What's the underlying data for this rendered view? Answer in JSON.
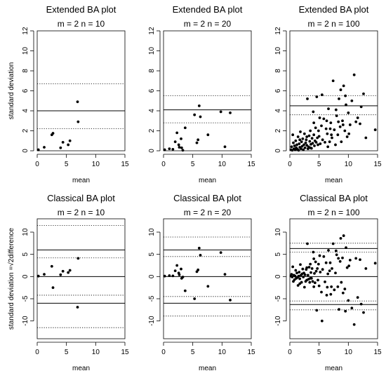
{
  "chart_data": [
    {
      "type": "scatter",
      "title": "Extended BA plot",
      "subtitle": "m = 2 n = 10",
      "xlabel": "mean",
      "ylabel": "standard deviation",
      "xlim": [
        0,
        15
      ],
      "ylim": [
        0,
        12
      ],
      "xticks": [
        0,
        5,
        10,
        15
      ],
      "yticks": [
        0,
        2,
        4,
        6,
        8,
        10,
        12
      ],
      "solid_lines": [
        4.0
      ],
      "dotted_lines": [
        2.2,
        6.7
      ],
      "points": [
        [
          0.2,
          0.1
        ],
        [
          1.2,
          0.35
        ],
        [
          2.5,
          1.6
        ],
        [
          2.7,
          1.75
        ],
        [
          4.0,
          0.3
        ],
        [
          4.4,
          0.85
        ],
        [
          5.3,
          0.6
        ],
        [
          5.6,
          1.0
        ],
        [
          7.0,
          2.9
        ],
        [
          6.9,
          4.9
        ]
      ]
    },
    {
      "type": "scatter",
      "title": "Extended BA plot",
      "subtitle": "m = 2 n = 20",
      "xlabel": "mean",
      "ylabel": "",
      "xlim": [
        0,
        15
      ],
      "ylim": [
        0,
        12
      ],
      "xticks": [
        0,
        5,
        10,
        15
      ],
      "yticks": [
        0,
        2,
        4,
        6,
        8,
        10,
        12
      ],
      "solid_lines": [
        4.1
      ],
      "dotted_lines": [
        2.8,
        5.5
      ],
      "points": [
        [
          0.2,
          0.1
        ],
        [
          1.0,
          0.2
        ],
        [
          1.6,
          0.15
        ],
        [
          2.0,
          0.9
        ],
        [
          2.3,
          1.8
        ],
        [
          2.7,
          0.35
        ],
        [
          3.1,
          0.3
        ],
        [
          3.7,
          2.3
        ],
        [
          5.3,
          3.6
        ],
        [
          5.7,
          0.8
        ],
        [
          5.9,
          1.1
        ],
        [
          6.1,
          4.5
        ],
        [
          6.3,
          3.4
        ],
        [
          7.6,
          1.6
        ],
        [
          9.8,
          3.9
        ],
        [
          10.5,
          0.4
        ],
        [
          11.4,
          3.8
        ],
        [
          2.6,
          0.6
        ],
        [
          3.0,
          1.2
        ],
        [
          3.3,
          0.05
        ]
      ]
    },
    {
      "type": "scatter",
      "title": "Extended BA plot",
      "subtitle": "m = 2 n = 100",
      "xlabel": "mean",
      "ylabel": "",
      "xlim": [
        0,
        15
      ],
      "ylim": [
        0,
        12
      ],
      "xticks": [
        0,
        5,
        10,
        15
      ],
      "yticks": [
        0,
        2,
        4,
        6,
        8,
        10,
        12
      ],
      "solid_lines": [
        4.5
      ],
      "dotted_lines": [
        3.6,
        5.5
      ],
      "points": [
        [
          0.2,
          0.1
        ],
        [
          0.3,
          0.4
        ],
        [
          0.4,
          0.05
        ],
        [
          0.5,
          1.6
        ],
        [
          0.6,
          0.8
        ],
        [
          0.7,
          0.2
        ],
        [
          0.8,
          0.5
        ],
        [
          0.9,
          0.1
        ],
        [
          1.0,
          1.0
        ],
        [
          1.1,
          0.3
        ],
        [
          1.2,
          0.6
        ],
        [
          1.3,
          0.15
        ],
        [
          1.4,
          1.4
        ],
        [
          1.5,
          0.05
        ],
        [
          1.6,
          0.7
        ],
        [
          1.7,
          0.35
        ],
        [
          1.8,
          1.9
        ],
        [
          1.9,
          0.2
        ],
        [
          2.0,
          0.9
        ],
        [
          2.1,
          0.45
        ],
        [
          2.2,
          1.2
        ],
        [
          2.3,
          0.1
        ],
        [
          2.4,
          0.6
        ],
        [
          2.5,
          1.7
        ],
        [
          2.6,
          0.3
        ],
        [
          2.7,
          0.8
        ],
        [
          2.8,
          1.1
        ],
        [
          2.9,
          0.55
        ],
        [
          3.0,
          5.2
        ],
        [
          3.1,
          0.2
        ],
        [
          3.2,
          0.4
        ],
        [
          3.3,
          1.5
        ],
        [
          3.4,
          0.95
        ],
        [
          3.5,
          2.0
        ],
        [
          3.6,
          0.65
        ],
        [
          3.7,
          0.25
        ],
        [
          3.8,
          1.25
        ],
        [
          3.9,
          0.75
        ],
        [
          4.0,
          3.9
        ],
        [
          4.1,
          1.6
        ],
        [
          4.2,
          0.5
        ],
        [
          4.3,
          1.0
        ],
        [
          4.4,
          2.3
        ],
        [
          4.5,
          0.85
        ],
        [
          4.6,
          5.4
        ],
        [
          4.7,
          1.3
        ],
        [
          4.8,
          0.6
        ],
        [
          4.9,
          2.0
        ],
        [
          5.0,
          1.45
        ],
        [
          5.2,
          0.7
        ],
        [
          5.4,
          2.5
        ],
        [
          5.6,
          1.1
        ],
        [
          5.8,
          3.2
        ],
        [
          6.0,
          0.85
        ],
        [
          6.2,
          2.2
        ],
        [
          6.4,
          1.7
        ],
        [
          6.6,
          4.2
        ],
        [
          6.8,
          0.9
        ],
        [
          7.0,
          2.8
        ],
        [
          7.2,
          1.3
        ],
        [
          7.4,
          7.0
        ],
        [
          7.6,
          2.1
        ],
        [
          7.8,
          0.6
        ],
        [
          8.0,
          3.5
        ],
        [
          8.2,
          1.6
        ],
        [
          8.4,
          5.2
        ],
        [
          8.6,
          2.4
        ],
        [
          8.8,
          0.9
        ],
        [
          9.0,
          3.0
        ],
        [
          9.2,
          6.5
        ],
        [
          9.4,
          2.0
        ],
        [
          9.6,
          4.6
        ],
        [
          9.8,
          1.4
        ],
        [
          10.0,
          3.8
        ],
        [
          10.3,
          2.6
        ],
        [
          10.6,
          5.0
        ],
        [
          11.0,
          7.6
        ],
        [
          11.3,
          2.9
        ],
        [
          11.6,
          3.3
        ],
        [
          12.0,
          2.7
        ],
        [
          12.6,
          5.7
        ],
        [
          13.0,
          1.3
        ],
        [
          14.6,
          2.1
        ],
        [
          6.5,
          0.4
        ],
        [
          7.1,
          1.6
        ],
        [
          8.3,
          2.9
        ],
        [
          9.1,
          2.6
        ],
        [
          10.1,
          1.7
        ],
        [
          5.5,
          5.6
        ],
        [
          4.1,
          2.8
        ],
        [
          3.5,
          0.3
        ],
        [
          2.9,
          1.4
        ],
        [
          1.7,
          1.1
        ],
        [
          6.3,
          3.0
        ],
        [
          7.9,
          4.1
        ],
        [
          8.7,
          6.1
        ],
        [
          9.5,
          5.5
        ],
        [
          12.2,
          4.4
        ],
        [
          6.9,
          2.2
        ],
        [
          5.1,
          3.3
        ]
      ]
    },
    {
      "type": "scatter",
      "title": "Classical BA plot",
      "subtitle": "m = 2 n = 10",
      "xlabel": "mean",
      "ylabel": "standard deviation =√2difference",
      "xlim": [
        0,
        15
      ],
      "ylim": [
        -14,
        13
      ],
      "xticks": [
        0,
        5,
        10,
        15
      ],
      "yticks": [
        -10,
        -5,
        0,
        5,
        10
      ],
      "solid_lines": [
        6.0,
        0.0,
        -6.0
      ],
      "dotted_lines": [
        11.5,
        4.2,
        -4.2,
        -11.5
      ],
      "points": [
        [
          0.2,
          0.1
        ],
        [
          1.2,
          0.5
        ],
        [
          2.5,
          2.3
        ],
        [
          2.7,
          -2.5
        ],
        [
          4.0,
          0.4
        ],
        [
          4.4,
          1.2
        ],
        [
          5.3,
          0.9
        ],
        [
          5.6,
          1.4
        ],
        [
          7.0,
          4.1
        ],
        [
          6.9,
          -6.9
        ]
      ]
    },
    {
      "type": "scatter",
      "title": "Classical BA plot",
      "subtitle": "m = 2 n = 20",
      "xlabel": "mean",
      "ylabel": "",
      "xlim": [
        0,
        15
      ],
      "ylim": [
        -14,
        13
      ],
      "xticks": [
        0,
        5,
        10,
        15
      ],
      "yticks": [
        -10,
        -5,
        0,
        5,
        10
      ],
      "solid_lines": [
        6.0,
        0.0,
        -6.0
      ],
      "dotted_lines": [
        8.9,
        4.5,
        -4.5,
        -8.9
      ],
      "points": [
        [
          0.2,
          0.1
        ],
        [
          1.0,
          0.2
        ],
        [
          1.6,
          0.15
        ],
        [
          2.0,
          1.3
        ],
        [
          2.3,
          2.5
        ],
        [
          2.7,
          0.4
        ],
        [
          3.1,
          -0.4
        ],
        [
          3.7,
          -3.2
        ],
        [
          5.3,
          -5.0
        ],
        [
          5.7,
          1.1
        ],
        [
          5.9,
          1.5
        ],
        [
          6.1,
          6.4
        ],
        [
          6.3,
          4.8
        ],
        [
          7.6,
          -2.2
        ],
        [
          9.8,
          5.4
        ],
        [
          10.5,
          0.5
        ],
        [
          11.4,
          -5.3
        ],
        [
          2.6,
          0.8
        ],
        [
          3.0,
          1.7
        ],
        [
          3.3,
          -0.1
        ]
      ]
    },
    {
      "type": "scatter",
      "title": "Classical BA plot",
      "subtitle": "m = 2 n = 100",
      "xlabel": "mean",
      "ylabel": "",
      "xlim": [
        0,
        15
      ],
      "ylim": [
        -14,
        13
      ],
      "xticks": [
        0,
        5,
        10,
        15
      ],
      "yticks": [
        -10,
        -5,
        0,
        5,
        10
      ],
      "solid_lines": [
        6.3,
        0.0,
        -6.3
      ],
      "dotted_lines": [
        7.5,
        5.5,
        -5.5,
        -7.5
      ],
      "points": [
        [
          0.2,
          0.1
        ],
        [
          0.3,
          0.5
        ],
        [
          0.4,
          -0.1
        ],
        [
          0.5,
          2.2
        ],
        [
          0.6,
          -1.1
        ],
        [
          0.7,
          0.3
        ],
        [
          0.8,
          -0.7
        ],
        [
          0.9,
          0.1
        ],
        [
          1.0,
          1.4
        ],
        [
          1.1,
          -0.4
        ],
        [
          1.2,
          0.8
        ],
        [
          1.3,
          -0.2
        ],
        [
          1.4,
          -2.0
        ],
        [
          1.5,
          0.1
        ],
        [
          1.6,
          1.0
        ],
        [
          1.7,
          -0.5
        ],
        [
          1.8,
          2.7
        ],
        [
          1.9,
          0.3
        ],
        [
          2.0,
          -1.3
        ],
        [
          2.1,
          0.6
        ],
        [
          2.2,
          1.7
        ],
        [
          2.3,
          -0.1
        ],
        [
          2.4,
          0.8
        ],
        [
          2.5,
          -2.4
        ],
        [
          2.6,
          0.4
        ],
        [
          2.7,
          -1.1
        ],
        [
          2.8,
          1.6
        ],
        [
          2.9,
          -0.8
        ],
        [
          3.0,
          7.4
        ],
        [
          3.1,
          0.3
        ],
        [
          3.2,
          -0.6
        ],
        [
          3.3,
          2.1
        ],
        [
          3.4,
          -1.3
        ],
        [
          3.5,
          2.8
        ],
        [
          3.6,
          0.9
        ],
        [
          3.7,
          -0.4
        ],
        [
          3.8,
          1.8
        ],
        [
          3.9,
          -1.1
        ],
        [
          4.0,
          5.5
        ],
        [
          4.1,
          -2.3
        ],
        [
          4.2,
          0.7
        ],
        [
          4.3,
          -1.4
        ],
        [
          4.4,
          3.3
        ],
        [
          4.5,
          1.2
        ],
        [
          4.6,
          -7.6
        ],
        [
          4.7,
          1.8
        ],
        [
          4.8,
          -0.8
        ],
        [
          4.9,
          2.8
        ],
        [
          5.0,
          -2.1
        ],
        [
          5.2,
          1.0
        ],
        [
          5.4,
          -3.5
        ],
        [
          5.6,
          1.6
        ],
        [
          5.8,
          4.5
        ],
        [
          6.0,
          -1.2
        ],
        [
          6.2,
          3.1
        ],
        [
          6.4,
          -2.4
        ],
        [
          6.6,
          5.9
        ],
        [
          6.8,
          1.3
        ],
        [
          7.0,
          -4.0
        ],
        [
          7.2,
          1.8
        ],
        [
          7.4,
          7.4
        ],
        [
          7.6,
          -3.0
        ],
        [
          7.8,
          0.8
        ],
        [
          8.0,
          4.9
        ],
        [
          8.2,
          -2.3
        ],
        [
          8.4,
          -7.4
        ],
        [
          8.6,
          3.4
        ],
        [
          8.8,
          -1.3
        ],
        [
          9.0,
          4.2
        ],
        [
          9.2,
          9.2
        ],
        [
          9.4,
          -2.8
        ],
        [
          9.6,
          6.5
        ],
        [
          9.8,
          2.0
        ],
        [
          10.0,
          -5.4
        ],
        [
          10.3,
          3.7
        ],
        [
          10.6,
          -7.1
        ],
        [
          11.0,
          -10.8
        ],
        [
          11.3,
          4.1
        ],
        [
          11.6,
          -4.7
        ],
        [
          12.0,
          3.8
        ],
        [
          12.6,
          -8.1
        ],
        [
          13.0,
          1.8
        ],
        [
          14.6,
          3.0
        ],
        [
          6.5,
          0.6
        ],
        [
          7.1,
          -2.3
        ],
        [
          8.3,
          4.1
        ],
        [
          9.1,
          -3.7
        ],
        [
          10.1,
          2.4
        ],
        [
          5.5,
          -10.0
        ],
        [
          4.1,
          4.0
        ],
        [
          3.5,
          -0.4
        ],
        [
          2.9,
          2.0
        ],
        [
          1.7,
          -1.6
        ],
        [
          6.3,
          -4.2
        ],
        [
          7.9,
          5.8
        ],
        [
          8.7,
          8.6
        ],
        [
          9.5,
          -7.8
        ],
        [
          12.2,
          -6.2
        ],
        [
          6.9,
          3.1
        ],
        [
          5.1,
          4.7
        ]
      ]
    }
  ]
}
